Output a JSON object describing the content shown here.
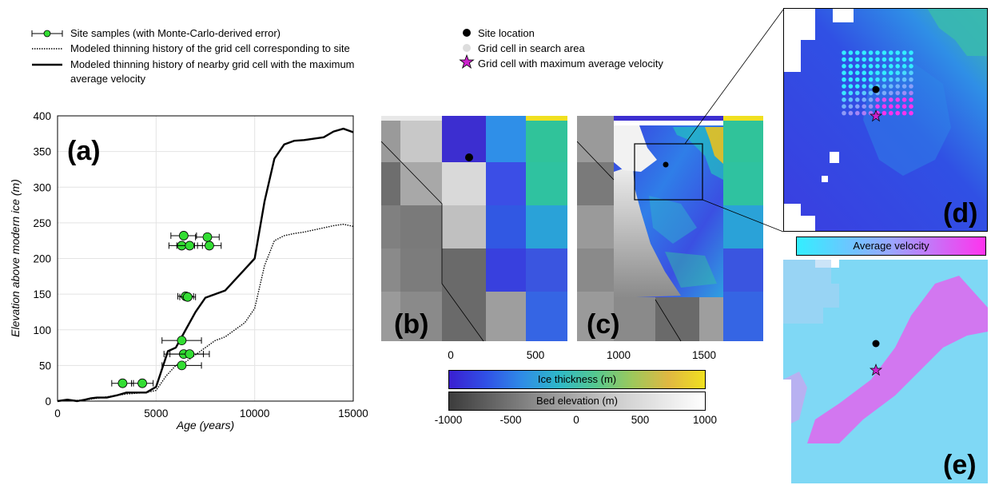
{
  "legend_left": {
    "samples": "Site samples (with Monte-Carlo-derived error)",
    "site_cell": "Modeled thinning history of the grid cell corresponding to site",
    "max_cell_line1": "Modeled thinning history of nearby grid cell with the maximum",
    "max_cell_line2": "average velocity"
  },
  "legend_right": {
    "site_location": "Site location",
    "search_cell": "Grid cell in search area",
    "max_velocity_cell": "Grid cell with maximum average velocity"
  },
  "panel_labels": {
    "a": "(a)",
    "b": "(b)",
    "c": "(c)",
    "d": "(d)",
    "e": "(e)"
  },
  "colorbars": {
    "velocity": "Average velocity",
    "ice_thickness": "Ice thickness (m)",
    "bed_elevation": "Bed elevation (m)",
    "bed_ticks": [
      "-1000",
      "-500",
      "0",
      "500",
      "1000"
    ]
  },
  "map_axis": {
    "ticks": [
      "0",
      "500",
      "1000",
      "1500"
    ]
  },
  "colors": {
    "sample_fill": "#33dd33",
    "site_marker": "#000000",
    "search_cell": "#dddddd",
    "max_velocity_star": "#cc22cc",
    "velocity_low": "#33eeff",
    "velocity_high": "#ff33ee"
  },
  "chart_data": {
    "type": "line",
    "xlabel": "Age (years)",
    "ylabel": "Elevation above modern ice (m)",
    "xlim": [
      0,
      15000
    ],
    "ylim": [
      0,
      400
    ],
    "xticks": [
      "0",
      "5000",
      "10000",
      "15000"
    ],
    "yticks": [
      "0",
      "50",
      "100",
      "150",
      "200",
      "250",
      "300",
      "350",
      "400"
    ],
    "grid": true,
    "series": [
      {
        "style": "solid",
        "x": [
          0,
          500,
          1000,
          1400,
          1700,
          2000,
          2500,
          3000,
          3500,
          4000,
          4500,
          5000,
          5300,
          5600,
          6000,
          6500,
          7000,
          7500,
          8000,
          8500,
          9000,
          9500,
          10000,
          10500,
          11000,
          11500,
          12000,
          12500,
          13000,
          13500,
          14000,
          14500,
          15000
        ],
        "y": [
          0,
          2,
          0,
          2,
          4,
          5,
          5,
          8,
          12,
          12,
          12,
          20,
          45,
          70,
          75,
          100,
          125,
          145,
          150,
          155,
          170,
          185,
          200,
          280,
          340,
          360,
          365,
          366,
          368,
          370,
          378,
          382,
          377
        ]
      },
      {
        "style": "dotted",
        "x": [
          0,
          500,
          1000,
          1500,
          2000,
          2500,
          3000,
          3500,
          4000,
          4500,
          5000,
          5500,
          6000,
          6500,
          7000,
          7500,
          8000,
          8500,
          9000,
          9500,
          10000,
          10500,
          11000,
          11500,
          12000,
          12500,
          13000,
          13500,
          14000,
          14500,
          15000
        ],
        "y": [
          0,
          1,
          1,
          2,
          4,
          6,
          8,
          10,
          11,
          12,
          15,
          35,
          50,
          55,
          65,
          75,
          85,
          90,
          100,
          110,
          130,
          190,
          225,
          232,
          235,
          237,
          240,
          243,
          246,
          248,
          245
        ]
      }
    ],
    "samples": [
      {
        "x": 3300,
        "y": 25,
        "xerr": 550
      },
      {
        "x": 4300,
        "y": 25,
        "xerr": 550
      },
      {
        "x": 6400,
        "y": 232,
        "xerr": 650
      },
      {
        "x": 6300,
        "y": 218,
        "xerr": 650
      },
      {
        "x": 6700,
        "y": 218,
        "xerr": 650
      },
      {
        "x": 7600,
        "y": 230,
        "xerr": 600
      },
      {
        "x": 7700,
        "y": 218,
        "xerr": 600
      },
      {
        "x": 6500,
        "y": 147,
        "xerr": 400
      },
      {
        "x": 6600,
        "y": 146,
        "xerr": 400
      },
      {
        "x": 6300,
        "y": 85,
        "xerr": 1000
      },
      {
        "x": 6400,
        "y": 66,
        "xerr": 1000
      },
      {
        "x": 6700,
        "y": 66,
        "xerr": 1000
      },
      {
        "x": 6300,
        "y": 50,
        "xerr": 1000
      }
    ]
  }
}
